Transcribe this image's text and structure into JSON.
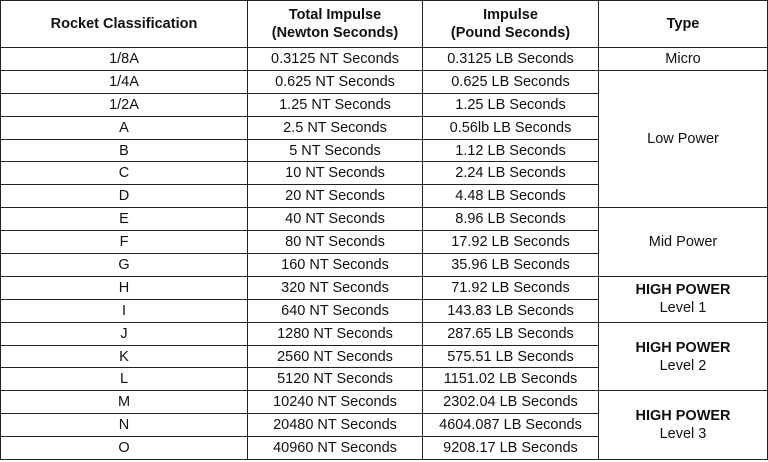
{
  "table": {
    "header": [
      [
        "Rocket Classification"
      ],
      [
        "Total Impulse",
        "(Newton Seconds)"
      ],
      [
        "Impulse",
        "(Pound Seconds)"
      ],
      [
        "Type"
      ]
    ],
    "rows": [
      [
        "1/8A",
        "0.3125 NT Seconds",
        "0.3125 LB Seconds"
      ],
      [
        "1/4A",
        "0.625 NT Seconds",
        "0.625 LB Seconds"
      ],
      [
        "1/2A",
        "1.25 NT Seconds",
        "1.25 LB Seconds"
      ],
      [
        "A",
        "2.5 NT Seconds",
        "0.56lb LB Seconds"
      ],
      [
        "B",
        "5 NT Seconds",
        "1.12 LB Seconds"
      ],
      [
        "C",
        "10 NT Seconds",
        "2.24 LB Seconds"
      ],
      [
        "D",
        "20 NT Seconds",
        "4.48 LB Seconds"
      ],
      [
        "E",
        "40 NT Seconds",
        "8.96 LB Seconds"
      ],
      [
        "F",
        "80 NT Seconds",
        "17.92 LB Seconds"
      ],
      [
        "G",
        "160 NT Seconds",
        "35.96 LB Seconds"
      ],
      [
        "H",
        "320 NT Seconds",
        "71.92 LB Seconds"
      ],
      [
        "I",
        "640 NT Seconds",
        "143.83 LB Seconds"
      ],
      [
        "J",
        "1280 NT Seconds",
        "287.65 LB Seconds"
      ],
      [
        "K",
        "2560 NT Seconds",
        "575.51 LB Seconds"
      ],
      [
        "L",
        "5120 NT Seconds",
        "1151.02 LB Seconds"
      ],
      [
        "M",
        "10240 NT Seconds",
        "2302.04 LB Seconds"
      ],
      [
        "N",
        "20480 NT Seconds",
        "4604.087 LB Seconds"
      ],
      [
        "O",
        "40960 NT Seconds",
        "9208.17 LB Seconds"
      ]
    ],
    "types": [
      [
        "Micro"
      ],
      [
        "Low Power"
      ],
      [
        "Mid Power"
      ],
      [
        "HIGH POWER",
        "Level 1"
      ],
      [
        "HIGH POWER",
        "Level 2"
      ],
      [
        "HIGH POWER",
        "Level 3"
      ]
    ]
  }
}
